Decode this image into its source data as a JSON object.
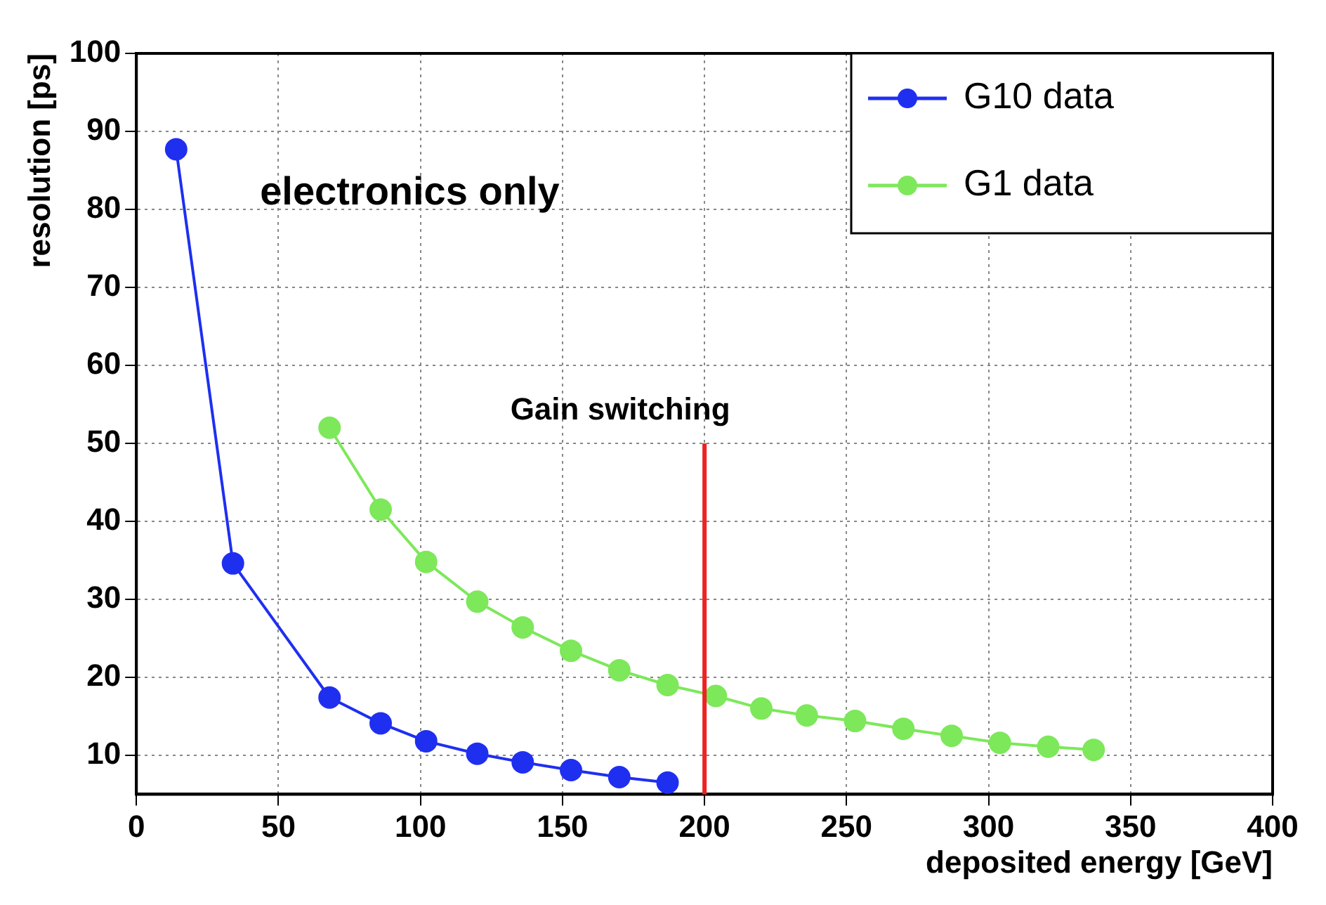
{
  "chart_data": {
    "type": "line",
    "xlabel": "deposited energy [GeV]",
    "ylabel": "resolution [ps]",
    "xlim": [
      0,
      400
    ],
    "xticks": [
      0,
      50,
      100,
      150,
      200,
      250,
      300,
      350,
      400
    ],
    "ylim": [
      5,
      100
    ],
    "yticks": [
      10,
      20,
      30,
      40,
      50,
      60,
      70,
      80,
      90,
      100
    ],
    "grid": true,
    "legend": "top right",
    "marker": "circle",
    "line_style": "solid",
    "series": [
      {
        "name": "G10 data",
        "color": "#1f2ff0",
        "x": [
          14,
          34,
          68,
          86,
          102,
          120,
          136,
          153,
          170,
          187
        ],
        "values": [
          87.7,
          34.6,
          17.4,
          14.1,
          11.8,
          10.2,
          9.1,
          8.1,
          7.2,
          6.5
        ]
      },
      {
        "name": "G1 data",
        "color": "#7de85a",
        "x": [
          68,
          86,
          102,
          120,
          136,
          153,
          170,
          187,
          204,
          220,
          236,
          253,
          270,
          287,
          304,
          321,
          337
        ],
        "values": [
          52,
          41.5,
          34.8,
          29.7,
          26.4,
          23.4,
          20.9,
          19,
          17.6,
          16,
          15.1,
          14.4,
          13.4,
          12.5,
          11.6,
          11.1,
          10.7
        ]
      }
    ],
    "ref_lines": [
      {
        "axis": "x",
        "value": 200,
        "label": "Gain switching",
        "color": "#ee2222"
      }
    ],
    "annotations": [
      "electronics only"
    ]
  }
}
